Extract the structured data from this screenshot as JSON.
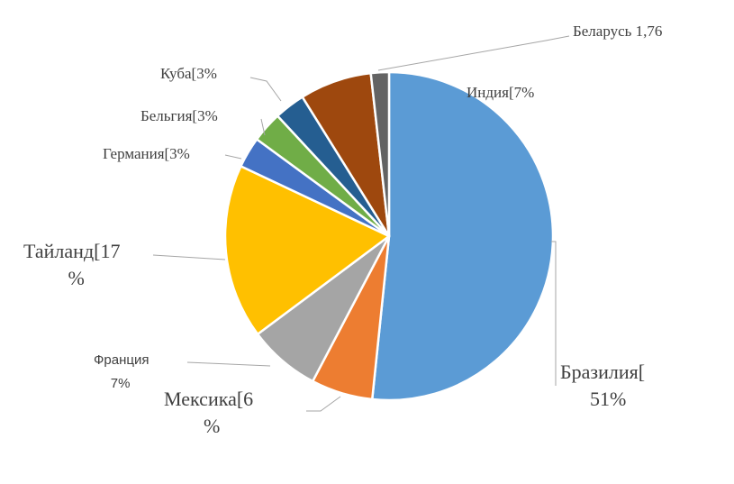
{
  "chart_data": {
    "type": "pie",
    "title": "",
    "slices": [
      {
        "name": "Бразилия",
        "value": 51,
        "color": "#5b9bd5",
        "label_lines": [
          "Бразилия[",
          "51%"
        ]
      },
      {
        "name": "Мексика",
        "value": 6,
        "color": "#ed7d31",
        "label_lines": [
          "Мексика[6",
          "%"
        ]
      },
      {
        "name": "Франция",
        "value": 7,
        "color": "#a5a5a5",
        "label_lines": [
          "Франция",
          "7%"
        ]
      },
      {
        "name": "Тайланд",
        "value": 17,
        "color": "#ffc000",
        "label_lines": [
          "Тайланд[17",
          "%"
        ]
      },
      {
        "name": "Германия",
        "value": 3,
        "color": "#4472c4",
        "label_lines": [
          "Германия[3%"
        ]
      },
      {
        "name": "Бельгия",
        "value": 3,
        "color": "#70ad47",
        "label_lines": [
          "Бельгия[3%"
        ]
      },
      {
        "name": "Куба",
        "value": 3,
        "color": "#255e91",
        "label_lines": [
          "Куба[3%"
        ]
      },
      {
        "name": "Индия",
        "value": 7,
        "color": "#9e480e",
        "label_lines": [
          "Индия[7%"
        ]
      },
      {
        "name": "Беларусь",
        "value": 1.76,
        "color": "#636363",
        "label_lines": [
          "Беларусь 1,76"
        ]
      }
    ],
    "legend": "none",
    "grid": false
  }
}
